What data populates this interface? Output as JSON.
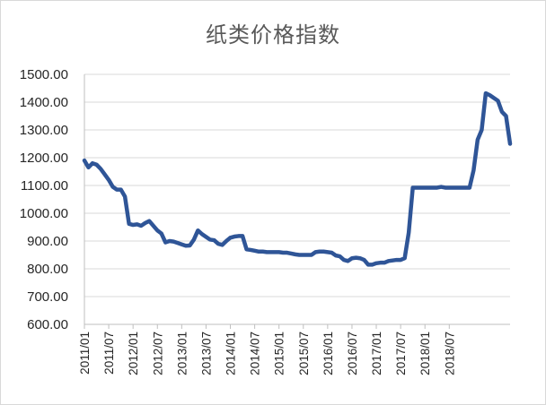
{
  "chart_data": {
    "type": "line",
    "title": "纸类价格指数",
    "xlabel": "",
    "ylabel": "",
    "ylim": [
      600,
      1500
    ],
    "yticks": [
      "1500.00",
      "1400.00",
      "1300.00",
      "1200.00",
      "1100.00",
      "1000.00",
      "900.00",
      "800.00",
      "700.00",
      "600.00"
    ],
    "xticks": [
      "2011/01",
      "2011/07",
      "2012/01",
      "2012/07",
      "2013/01",
      "2013/07",
      "2014/01",
      "2014/07",
      "2015/01",
      "2015/07",
      "2016/01",
      "2016/07",
      "2017/01",
      "2017/07",
      "2018/01",
      "2018/07"
    ],
    "grid": true,
    "legend": "none",
    "line_color": "#2f5597",
    "series": [
      {
        "values": [
          1190,
          1165,
          1180,
          1175,
          1160,
          1140,
          1120,
          1095,
          1085,
          1085,
          1060,
          962,
          958,
          960,
          955,
          965,
          972,
          955,
          938,
          927,
          895,
          900,
          898,
          893,
          888,
          883,
          884,
          905,
          938,
          925,
          915,
          905,
          903,
          890,
          886,
          900,
          912,
          916,
          918,
          918,
          870,
          868,
          865,
          862,
          862,
          860,
          860,
          860,
          860,
          858,
          858,
          855,
          852,
          850,
          850,
          850,
          850,
          860,
          862,
          862,
          860,
          858,
          848,
          845,
          832,
          828,
          838,
          840,
          838,
          832,
          815,
          815,
          820,
          822,
          822,
          828,
          830,
          832,
          832,
          838,
          930,
          1092,
          1092,
          1092,
          1092,
          1092,
          1092,
          1092,
          1095,
          1092,
          1092,
          1092,
          1092,
          1092,
          1092,
          1092,
          1155,
          1265,
          1300,
          1432,
          1425,
          1415,
          1405,
          1365,
          1350,
          1250
        ]
      }
    ]
  }
}
